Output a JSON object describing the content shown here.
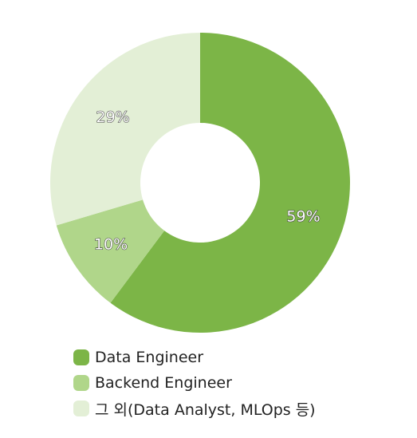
{
  "chart_data": {
    "type": "pie",
    "donut": true,
    "start_angle_deg": 0,
    "direction": "clockwise",
    "slices": [
      {
        "label": "Data Engineer",
        "value": 59,
        "value_label": "59%",
        "color": "#7cb547"
      },
      {
        "label": "Backend Engineer",
        "value": 10,
        "value_label": "10%",
        "color": "#b0d68a"
      },
      {
        "label": "그 외(Data Analyst, MLOps 등)",
        "value": 29,
        "value_label": "29%",
        "color": "#e3efd6"
      }
    ],
    "legend_position": "bottom"
  }
}
